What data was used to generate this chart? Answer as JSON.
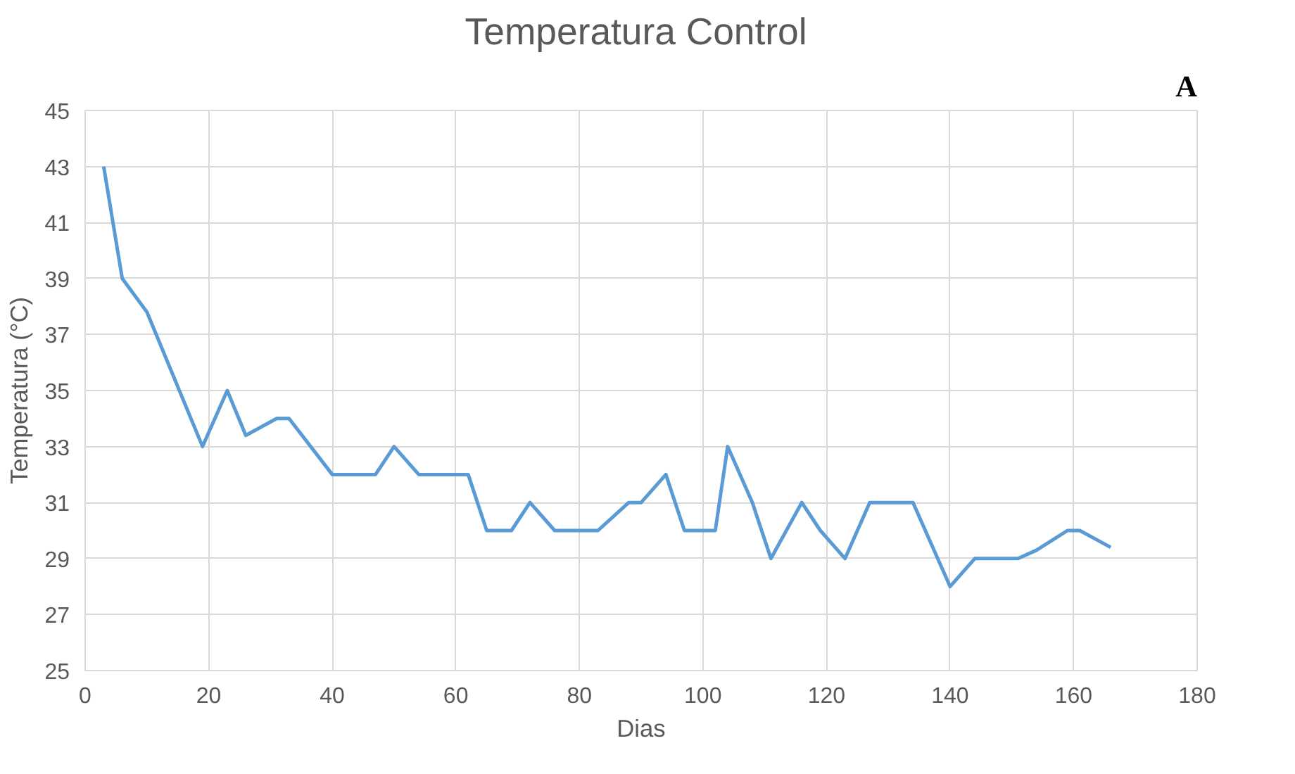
{
  "chart_data": {
    "type": "line",
    "title": "Temperatura  Control",
    "xlabel": "Dias",
    "ylabel": "Temperatura (°C)",
    "annotations": [
      "A"
    ],
    "x": [
      3,
      6,
      10,
      19,
      23,
      26,
      31,
      33,
      40,
      47,
      50,
      54,
      62,
      65,
      69,
      72,
      76,
      83,
      88,
      90,
      94,
      97,
      102,
      104,
      108,
      111,
      116,
      119,
      123,
      127,
      134,
      140,
      144,
      151,
      154,
      159,
      161,
      166
    ],
    "series": [
      {
        "color": "#5b9bd5",
        "values": [
          43,
          39,
          37.8,
          33,
          35,
          33.4,
          34,
          34,
          32,
          32,
          33,
          32,
          32,
          30,
          30,
          31,
          30,
          30,
          31,
          31,
          32,
          30,
          30,
          33,
          31,
          29,
          31,
          30,
          29,
          31,
          31,
          28,
          29,
          29,
          29.3,
          30,
          30,
          29.4
        ]
      }
    ],
    "xlim": [
      0,
      180
    ],
    "xticks": [
      0,
      20,
      40,
      60,
      80,
      100,
      120,
      140,
      160,
      180
    ],
    "ylim": [
      25,
      45
    ],
    "yticks": [
      25,
      27,
      29,
      31,
      33,
      35,
      37,
      39,
      41,
      43,
      45
    ],
    "grid": true,
    "marker": "none",
    "line_style": "solid"
  }
}
